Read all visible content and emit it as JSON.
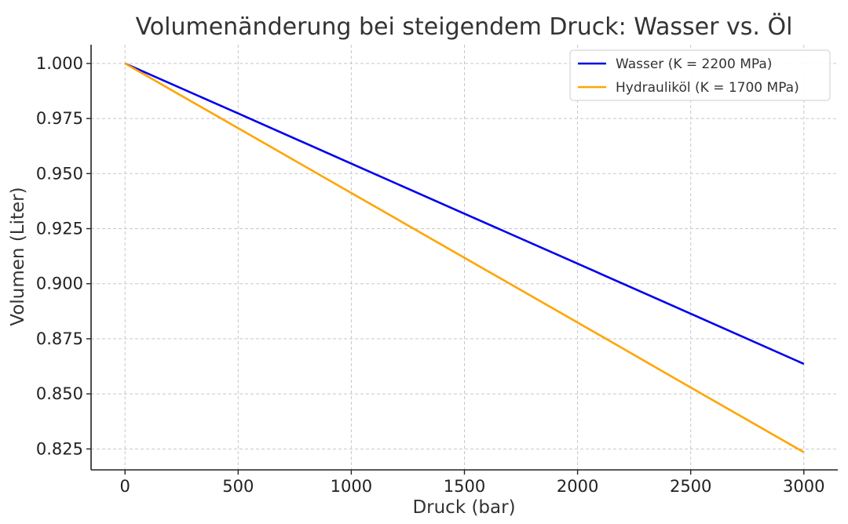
{
  "chart_data": {
    "type": "line",
    "title": "Volumenänderung bei steigendem Druck: Wasser vs. Öl",
    "xlabel": "Druck (bar)",
    "ylabel": "Volumen (Liter)",
    "xlim": [
      -150,
      3150
    ],
    "ylim": [
      0.8155,
      1.0085
    ],
    "xticks": [
      0,
      500,
      1000,
      1500,
      2000,
      2500,
      3000
    ],
    "xtick_labels": [
      "0",
      "500",
      "1000",
      "1500",
      "2000",
      "2500",
      "3000"
    ],
    "yticks": [
      0.825,
      0.85,
      0.875,
      0.9,
      0.925,
      0.95,
      0.975,
      1.0
    ],
    "ytick_labels": [
      "0.825",
      "0.850",
      "0.875",
      "0.900",
      "0.925",
      "0.950",
      "0.975",
      "1.000"
    ],
    "grid": true,
    "legend_position": "top-right",
    "series": [
      {
        "name": "Wasser (K = 2200 MPa)",
        "color": "#0000ee",
        "x": [
          0,
          500,
          1000,
          1500,
          2000,
          2500,
          3000
        ],
        "y": [
          1.0,
          0.9773,
          0.9545,
          0.9318,
          0.9091,
          0.8864,
          0.8636
        ]
      },
      {
        "name": "Hydrauliköl (K = 1700 MPa)",
        "color": "#ffa500",
        "x": [
          0,
          500,
          1000,
          1500,
          2000,
          2500,
          3000
        ],
        "y": [
          1.0,
          0.9706,
          0.9412,
          0.9118,
          0.8824,
          0.8529,
          0.8235
        ]
      }
    ]
  }
}
